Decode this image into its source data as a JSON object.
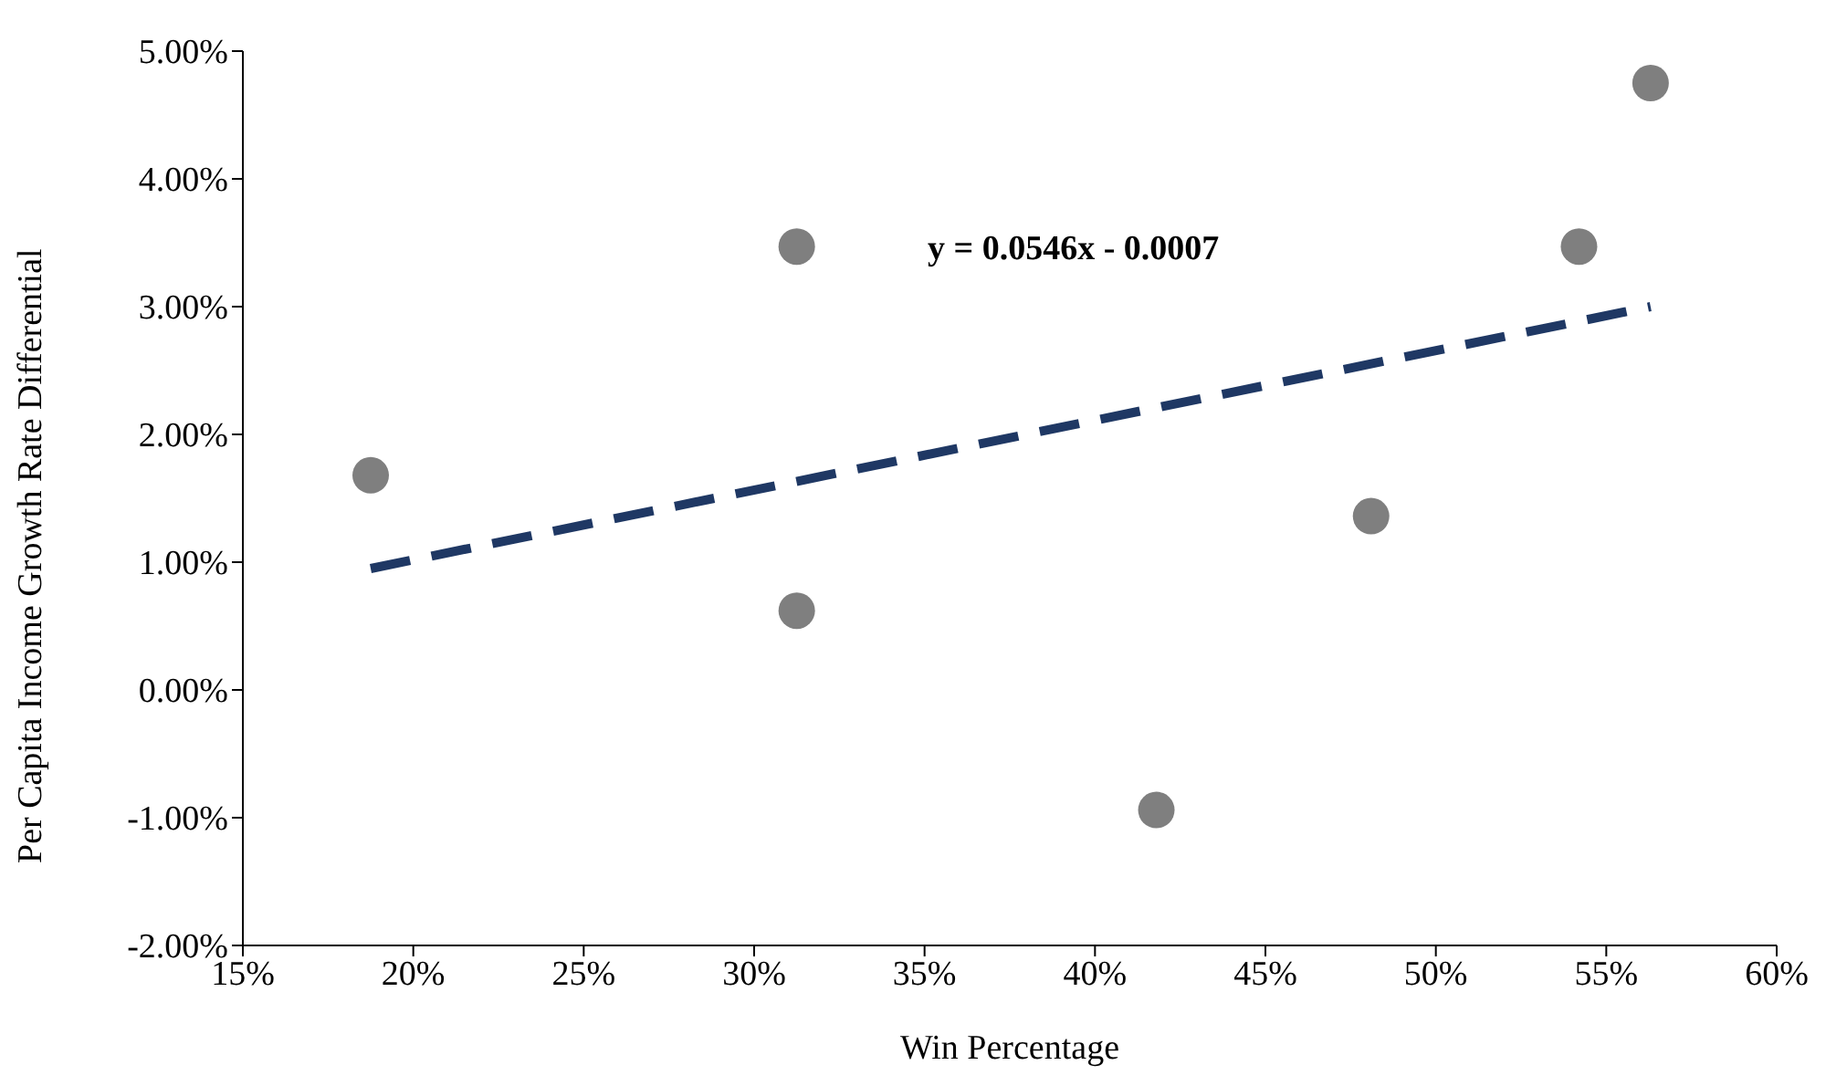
{
  "chart_data": {
    "type": "scatter",
    "xlabel": "Win Percentage",
    "ylabel": "Per Capita Income Growth Rate Differential",
    "annotations": [
      "y = 0.0546x - 0.0007"
    ],
    "series": [
      {
        "color": "#7f7f7f",
        "x": [
          18.75,
          31.25,
          31.25,
          41.8,
          48.1,
          54.2,
          56.3
        ],
        "values": [
          1.68,
          3.47,
          0.62,
          -0.94,
          1.36,
          3.47,
          4.75
        ],
        "marker": "circle"
      },
      {
        "type": "line",
        "color": "#1f3864",
        "x": [
          18.75,
          56.3
        ],
        "values": [
          0.95,
          3.0
        ],
        "line_style": "dashed",
        "marker": "none"
      }
    ],
    "xlim": [
      15,
      60
    ],
    "xticks": [
      {
        "value": 15,
        "label": "15%"
      },
      {
        "value": 20,
        "label": "20%"
      },
      {
        "value": 25,
        "label": "25%"
      },
      {
        "value": 30,
        "label": "30%"
      },
      {
        "value": 35,
        "label": "35%"
      },
      {
        "value": 40,
        "label": "40%"
      },
      {
        "value": 45,
        "label": "45%"
      },
      {
        "value": 50,
        "label": "50%"
      },
      {
        "value": 55,
        "label": "55%"
      },
      {
        "value": 60,
        "label": "60%"
      }
    ],
    "ylim": [
      -2,
      5
    ],
    "yticks": [
      {
        "value": -2,
        "label": "-2.00%"
      },
      {
        "value": -1,
        "label": "-1.00%"
      },
      {
        "value": 0,
        "label": "0.00%"
      },
      {
        "value": 1,
        "label": "1.00%"
      },
      {
        "value": 2,
        "label": "2.00%"
      },
      {
        "value": 3,
        "label": "3.00%"
      },
      {
        "value": 4,
        "label": "4.00%"
      },
      {
        "value": 5,
        "label": "5.00%"
      }
    ],
    "grid": false,
    "legend": false
  }
}
